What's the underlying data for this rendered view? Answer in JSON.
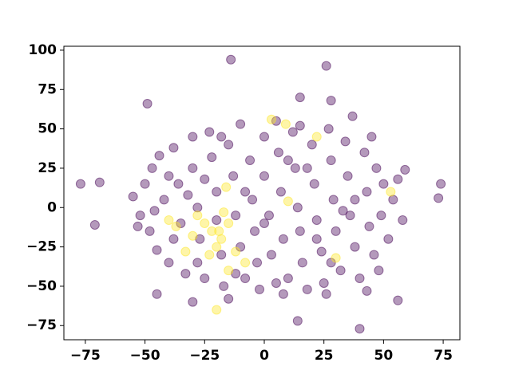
{
  "chart_data": {
    "type": "scatter",
    "xlim": [
      -84,
      82
    ],
    "ylim": [
      -84,
      102.5
    ],
    "xticks": [
      {
        "value": -75,
        "label": "−75"
      },
      {
        "value": -50,
        "label": "−50"
      },
      {
        "value": -25,
        "label": "−25"
      },
      0,
      25,
      50,
      75
    ],
    "yticks": [
      {
        "value": -75,
        "label": "−75"
      },
      {
        "value": -50,
        "label": "−50"
      },
      {
        "value": -25,
        "label": "−25"
      },
      0,
      25,
      50,
      75,
      100
    ],
    "grid": false,
    "series": [
      {
        "color": "#440154",
        "x": [
          -77,
          -69,
          -71,
          -14,
          26,
          -49,
          15,
          28,
          37,
          73,
          74,
          56,
          40,
          14,
          -30,
          -45,
          -15,
          26,
          43,
          -55,
          -52,
          -50,
          -48,
          -47,
          -45,
          -44,
          -42,
          -40,
          -38,
          -36,
          -35,
          -33,
          -30,
          -30,
          -28,
          -27,
          -25,
          -23,
          -22,
          -20,
          -18,
          -17,
          -15,
          -13,
          -12,
          -10,
          -10,
          -8,
          -6,
          -5,
          -4,
          -2,
          0,
          0,
          2,
          3,
          5,
          6,
          7,
          8,
          10,
          12,
          13,
          14,
          15,
          16,
          18,
          20,
          21,
          22,
          24,
          25,
          27,
          28,
          29,
          30,
          32,
          34,
          35,
          36,
          38,
          40,
          42,
          43,
          44,
          46,
          47,
          49,
          50,
          52,
          54,
          56,
          58,
          59,
          -53,
          -46,
          -38,
          -32,
          -25,
          -20,
          -8,
          -3,
          5,
          18,
          28,
          38,
          45,
          -12,
          10,
          0,
          22,
          33,
          -40,
          15,
          -28,
          48,
          8,
          -18
        ],
        "values": [
          15,
          16,
          -11,
          94,
          90,
          66,
          70,
          68,
          58,
          6,
          15,
          -59,
          -77,
          -72,
          -60,
          -55,
          -58,
          -55,
          -53,
          7,
          -5,
          15,
          -15,
          25,
          -27,
          33,
          5,
          -35,
          38,
          15,
          -10,
          -42,
          45,
          25,
          0,
          -20,
          -45,
          48,
          32,
          10,
          -30,
          -50,
          40,
          20,
          -5,
          -25,
          53,
          -45,
          30,
          5,
          -15,
          -52,
          45,
          20,
          -5,
          -30,
          55,
          35,
          10,
          -20,
          -45,
          48,
          25,
          0,
          -15,
          -35,
          -52,
          40,
          15,
          -8,
          -28,
          -48,
          50,
          30,
          5,
          -15,
          -40,
          42,
          20,
          -5,
          -25,
          -45,
          35,
          10,
          -12,
          -30,
          25,
          -5,
          15,
          -20,
          5,
          18,
          -8,
          24,
          -12,
          -2,
          -20,
          8,
          18,
          -8,
          10,
          -35,
          -48,
          25,
          -35,
          5,
          45,
          -42,
          30,
          -10,
          -20,
          -2,
          20,
          52,
          -35,
          -40,
          -55,
          45
        ]
      },
      {
        "color": "#fde725",
        "x": [
          -20,
          3,
          9,
          -16,
          53,
          30,
          -15,
          -22,
          -25,
          -18,
          -30,
          -20,
          -15,
          -12,
          -28,
          -17,
          -33,
          -23,
          -8,
          10,
          -37,
          22,
          -40,
          -19
        ],
        "values": [
          -65,
          56,
          53,
          13,
          10,
          -32,
          -40,
          -15,
          -10,
          -20,
          -18,
          -25,
          -10,
          -28,
          -5,
          -3,
          -28,
          -30,
          -35,
          4,
          -12,
          45,
          -8,
          -15
        ]
      }
    ]
  }
}
